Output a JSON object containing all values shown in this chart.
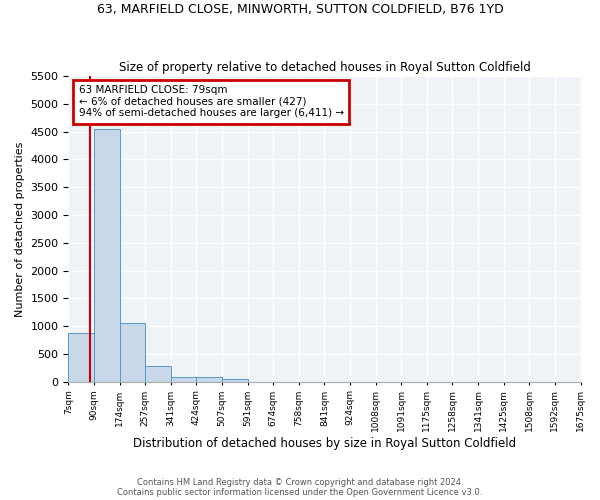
{
  "title": "63, MARFIELD CLOSE, MINWORTH, SUTTON COLDFIELD, B76 1YD",
  "subtitle": "Size of property relative to detached houses in Royal Sutton Coldfield",
  "xlabel": "Distribution of detached houses by size in Royal Sutton Coldfield",
  "ylabel": "Number of detached properties",
  "bar_values": [
    880,
    4540,
    1060,
    280,
    90,
    90,
    55,
    0,
    0,
    0,
    0,
    0,
    0,
    0,
    0,
    0,
    0,
    0,
    0,
    0
  ],
  "bar_color": "#c8d8e8",
  "bar_edge_color": "#5599cc",
  "x_labels": [
    "7sqm",
    "90sqm",
    "174sqm",
    "257sqm",
    "341sqm",
    "424sqm",
    "507sqm",
    "591sqm",
    "674sqm",
    "758sqm",
    "841sqm",
    "924sqm",
    "1008sqm",
    "1091sqm",
    "1175sqm",
    "1258sqm",
    "1341sqm",
    "1425sqm",
    "1508sqm",
    "1592sqm",
    "1675sqm"
  ],
  "ylim": [
    0,
    5500
  ],
  "red_line_x": 0.85,
  "annotation_text": "63 MARFIELD CLOSE: 79sqm\n← 6% of detached houses are smaller (427)\n94% of semi-detached houses are larger (6,411) →",
  "annotation_box_edgecolor": "#cc0000",
  "footnote1": "Contains HM Land Registry data © Crown copyright and database right 2024.",
  "footnote2": "Contains public sector information licensed under the Open Government Licence v3.0.",
  "background_color": "#eef3f8",
  "grid_color": "#ffffff",
  "yticks": [
    0,
    500,
    1000,
    1500,
    2000,
    2500,
    3000,
    3500,
    4000,
    4500,
    5000,
    5500
  ]
}
